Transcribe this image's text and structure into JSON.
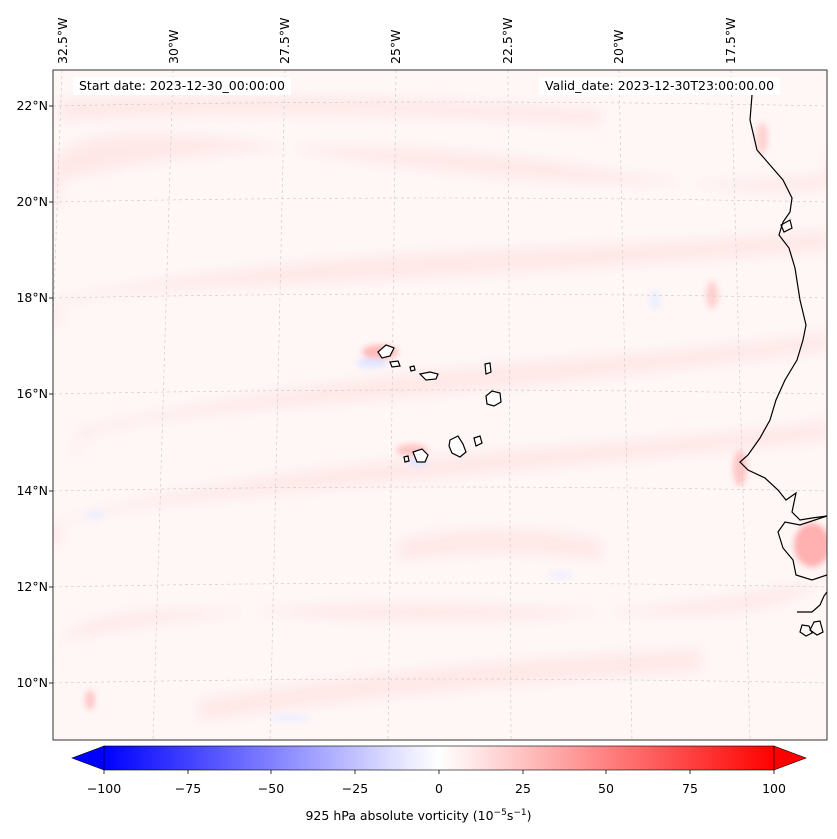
{
  "map": {
    "title_left": "Start date: 2023-12-30_00:00:00",
    "title_right": "Valid_date: 2023-12-30T23:00:00.00",
    "lat_labels": [
      "22°N",
      "20°N",
      "18°N",
      "16°N",
      "14°N",
      "12°N",
      "10°N"
    ],
    "lon_labels": [
      "32.5°W",
      "30°W",
      "27.5°W",
      "25°W",
      "22.5°W",
      "20°W",
      "17.5°W"
    ]
  },
  "colorbar": {
    "min": -100,
    "max": 100,
    "ticks": [
      "−100",
      "−75",
      "−50",
      "−25",
      "0",
      "25",
      "50",
      "75",
      "100"
    ],
    "label_main": "925 hPa absolute vorticity (10",
    "label_exp1": "−5",
    "label_mid": "s",
    "label_exp2": "−1",
    "label_end": ")",
    "low_color": "#0000ff",
    "high_color": "#ff0000"
  }
}
